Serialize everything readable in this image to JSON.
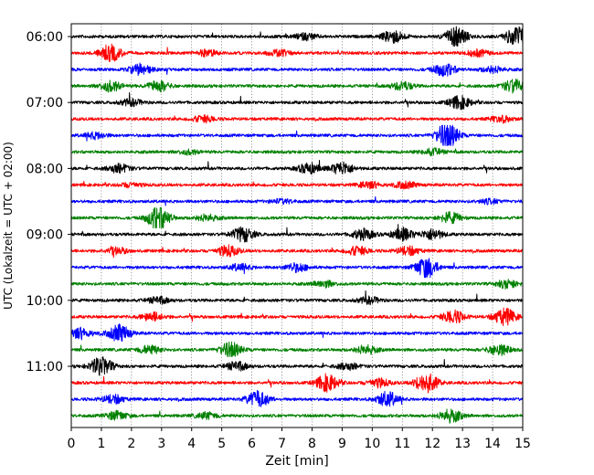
{
  "chart_data": {
    "type": "line",
    "subtype": "helicorder",
    "xlabel": "Zeit  [min]",
    "ylabel": "UTC (Lokalzeit = UTC + 02:00)",
    "xlim": [
      0,
      15
    ],
    "x_ticks": [
      "0",
      "1",
      "2",
      "3",
      "4",
      "5",
      "6",
      "7",
      "8",
      "9",
      "10",
      "11",
      "12",
      "13",
      "14",
      "15"
    ],
    "y_tick_labels": [
      "06:00",
      "07:00",
      "08:00",
      "09:00",
      "10:00",
      "11:00"
    ],
    "grid": "vertical-dotted",
    "trace_colors": [
      "#000000",
      "#ff0000",
      "#0000ff",
      "#008000"
    ],
    "traces": [
      {
        "start": "06:00",
        "color": "#000000",
        "bursts": [
          {
            "x": 12.8,
            "amp": 0.9
          },
          {
            "x": 10.7,
            "amp": 0.6
          },
          {
            "x": 14.8,
            "amp": 1.0
          },
          {
            "x": 7.8,
            "amp": 0.3
          }
        ]
      },
      {
        "start": "06:15",
        "color": "#ff0000",
        "bursts": [
          {
            "x": 1.3,
            "amp": 0.8
          },
          {
            "x": 4.5,
            "amp": 0.3
          },
          {
            "x": 6.9,
            "amp": 0.3
          },
          {
            "x": 13.5,
            "amp": 0.3
          }
        ]
      },
      {
        "start": "06:30",
        "color": "#0000ff",
        "bursts": [
          {
            "x": 2.3,
            "amp": 0.5
          },
          {
            "x": 12.4,
            "amp": 0.6
          },
          {
            "x": 14.0,
            "amp": 0.3
          }
        ]
      },
      {
        "start": "06:45",
        "color": "#008000",
        "bursts": [
          {
            "x": 1.3,
            "amp": 0.5
          },
          {
            "x": 2.9,
            "amp": 0.5
          },
          {
            "x": 11.0,
            "amp": 0.4
          },
          {
            "x": 14.7,
            "amp": 0.6
          }
        ]
      },
      {
        "start": "07:00",
        "color": "#000000",
        "bursts": [
          {
            "x": 12.9,
            "amp": 0.6
          },
          {
            "x": 2.0,
            "amp": 0.3
          }
        ]
      },
      {
        "start": "07:15",
        "color": "#ff0000",
        "bursts": [
          {
            "x": 4.4,
            "amp": 0.3
          },
          {
            "x": 14.3,
            "amp": 0.3
          }
        ]
      },
      {
        "start": "07:30",
        "color": "#0000ff",
        "bursts": [
          {
            "x": 12.5,
            "amp": 1.3
          },
          {
            "x": 0.8,
            "amp": 0.3
          }
        ]
      },
      {
        "start": "07:45",
        "color": "#008000",
        "bursts": [
          {
            "x": 3.9,
            "amp": 0.2
          },
          {
            "x": 12.0,
            "amp": 0.3
          }
        ]
      },
      {
        "start": "08:00",
        "color": "#000000",
        "bursts": [
          {
            "x": 9.0,
            "amp": 0.6
          },
          {
            "x": 1.6,
            "amp": 0.4
          },
          {
            "x": 7.9,
            "amp": 0.5
          }
        ]
      },
      {
        "start": "08:15",
        "color": "#ff0000",
        "bursts": [
          {
            "x": 9.9,
            "amp": 0.3
          },
          {
            "x": 2.0,
            "amp": 0.2
          },
          {
            "x": 11.1,
            "amp": 0.3
          }
        ]
      },
      {
        "start": "08:30",
        "color": "#0000ff",
        "bursts": [
          {
            "x": 7.0,
            "amp": 0.2
          },
          {
            "x": 13.9,
            "amp": 0.2
          }
        ]
      },
      {
        "start": "08:45",
        "color": "#008000",
        "bursts": [
          {
            "x": 2.9,
            "amp": 1.2
          },
          {
            "x": 12.6,
            "amp": 0.5
          },
          {
            "x": 4.5,
            "amp": 0.3
          }
        ]
      },
      {
        "start": "09:00",
        "color": "#000000",
        "bursts": [
          {
            "x": 5.7,
            "amp": 0.7
          },
          {
            "x": 9.7,
            "amp": 0.5
          },
          {
            "x": 11.0,
            "amp": 0.6
          },
          {
            "x": 12.0,
            "amp": 0.5
          }
        ]
      },
      {
        "start": "09:15",
        "color": "#ff0000",
        "bursts": [
          {
            "x": 5.2,
            "amp": 0.5
          },
          {
            "x": 9.5,
            "amp": 0.4
          },
          {
            "x": 11.2,
            "amp": 0.4
          },
          {
            "x": 1.5,
            "amp": 0.3
          }
        ]
      },
      {
        "start": "09:30",
        "color": "#0000ff",
        "bursts": [
          {
            "x": 11.8,
            "amp": 1.0
          },
          {
            "x": 7.5,
            "amp": 0.4
          },
          {
            "x": 5.6,
            "amp": 0.3
          }
        ]
      },
      {
        "start": "09:45",
        "color": "#008000",
        "bursts": [
          {
            "x": 14.5,
            "amp": 0.4
          },
          {
            "x": 8.4,
            "amp": 0.3
          }
        ]
      },
      {
        "start": "10:00",
        "color": "#000000",
        "bursts": [
          {
            "x": 2.9,
            "amp": 0.3
          },
          {
            "x": 9.9,
            "amp": 0.3
          }
        ]
      },
      {
        "start": "10:15",
        "color": "#ff0000",
        "bursts": [
          {
            "x": 12.7,
            "amp": 0.6
          },
          {
            "x": 14.4,
            "amp": 0.8
          },
          {
            "x": 2.7,
            "amp": 0.4
          }
        ]
      },
      {
        "start": "10:30",
        "color": "#0000ff",
        "bursts": [
          {
            "x": 1.6,
            "amp": 0.8
          },
          {
            "x": 0.3,
            "amp": 0.5
          }
        ]
      },
      {
        "start": "10:45",
        "color": "#008000",
        "bursts": [
          {
            "x": 5.3,
            "amp": 0.7
          },
          {
            "x": 9.8,
            "amp": 0.4
          },
          {
            "x": 14.2,
            "amp": 0.5
          },
          {
            "x": 2.6,
            "amp": 0.4
          }
        ]
      },
      {
        "start": "11:00",
        "color": "#000000",
        "bursts": [
          {
            "x": 1.0,
            "amp": 0.9
          },
          {
            "x": 5.5,
            "amp": 0.4
          },
          {
            "x": 9.2,
            "amp": 0.3
          }
        ]
      },
      {
        "start": "11:15",
        "color": "#ff0000",
        "bursts": [
          {
            "x": 8.5,
            "amp": 0.8
          },
          {
            "x": 11.8,
            "amp": 1.0
          },
          {
            "x": 10.2,
            "amp": 0.4
          }
        ]
      },
      {
        "start": "11:30",
        "color": "#0000ff",
        "bursts": [
          {
            "x": 6.2,
            "amp": 0.8
          },
          {
            "x": 10.5,
            "amp": 0.7
          },
          {
            "x": 1.4,
            "amp": 0.4
          }
        ]
      },
      {
        "start": "11:45",
        "color": "#008000",
        "bursts": [
          {
            "x": 12.6,
            "amp": 0.6
          },
          {
            "x": 1.5,
            "amp": 0.4
          },
          {
            "x": 4.5,
            "amp": 0.3
          }
        ]
      }
    ]
  }
}
